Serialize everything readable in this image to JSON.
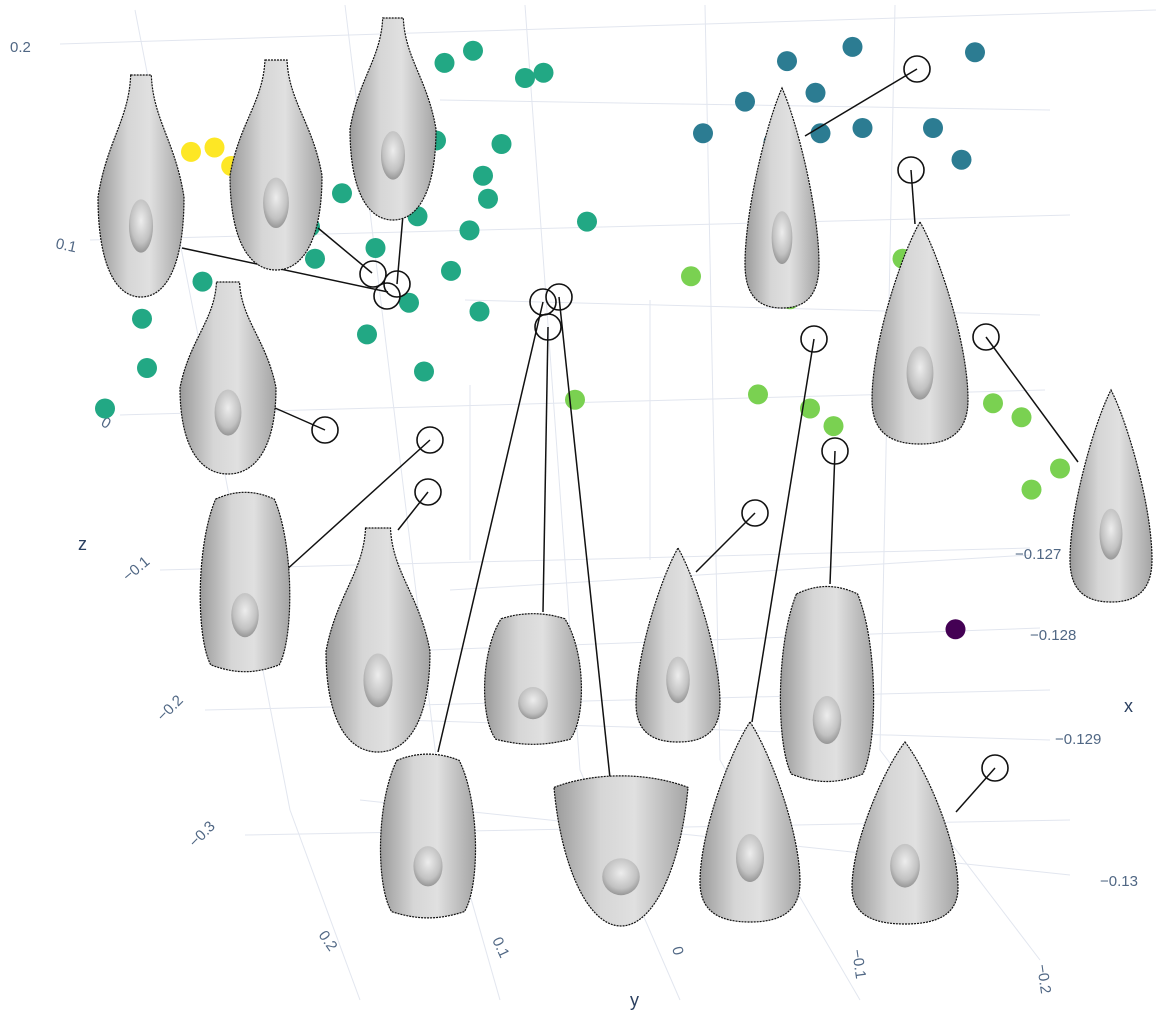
{
  "chart_data": {
    "type": "scatter3d",
    "axis_titles": {
      "x": "x",
      "y": "y",
      "z": "z"
    },
    "z_ticks": [
      "0.2",
      "0.1",
      "0",
      "−0.1",
      "−0.2",
      "−0.3"
    ],
    "y_ticks": [
      "0.2",
      "0.1",
      "0",
      "−0.1",
      "−0.2"
    ],
    "x_ticks": [
      "−0.127",
      "−0.128",
      "−0.129",
      "−0.13"
    ],
    "colorscale": "viridis",
    "colors": {
      "yellow": "#fde725",
      "teal": "#22a884",
      "blue": "#2c7c92",
      "lime": "#7ad151",
      "purple": "#440154"
    },
    "grid": true,
    "points": {
      "yellow": [
        {
          "x": -0.1272,
          "y": 0.13,
          "z": 0.09
        },
        {
          "x": -0.1272,
          "y": 0.14,
          "z": 0.085
        },
        {
          "x": -0.1273,
          "y": 0.125,
          "z": 0.075
        }
      ],
      "teal": [
        {
          "x": -0.1272,
          "y": 0.02,
          "z": 0.2
        },
        {
          "x": -0.1271,
          "y": 0.03,
          "z": 0.18
        },
        {
          "x": -0.1273,
          "y": 0.0,
          "z": 0.175
        },
        {
          "x": -0.1272,
          "y": -0.01,
          "z": 0.175
        },
        {
          "x": -0.1272,
          "y": 0.06,
          "z": 0.16
        },
        {
          "x": -0.1274,
          "y": 0.04,
          "z": 0.11
        },
        {
          "x": -0.1274,
          "y": 0.05,
          "z": 0.08
        },
        {
          "x": -0.1275,
          "y": 0.06,
          "z": 0.06
        },
        {
          "x": -0.1276,
          "y": 0.07,
          "z": 0.0
        },
        {
          "x": -0.1273,
          "y": 0.01,
          "z": 0.1
        },
        {
          "x": -0.1274,
          "y": 0.02,
          "z": 0.07
        },
        {
          "x": -0.1273,
          "y": 0.05,
          "z": 0.1
        },
        {
          "x": -0.1275,
          "y": 0.05,
          "z": 0.03
        },
        {
          "x": -0.1274,
          "y": 0.08,
          "z": 0.05
        },
        {
          "x": -0.1276,
          "y": -0.02,
          "z": 0.03
        },
        {
          "x": -0.1275,
          "y": 0.02,
          "z": 0.05
        },
        {
          "x": -0.1276,
          "y": 0.03,
          "z": 0.02
        },
        {
          "x": -0.1277,
          "y": 0.04,
          "z": -0.02
        },
        {
          "x": -0.1278,
          "y": 0.06,
          "z": -0.05
        },
        {
          "x": -0.1278,
          "y": 0.03,
          "z": -0.06
        },
        {
          "x": -0.1279,
          "y": 0.08,
          "z": -0.08
        },
        {
          "x": -0.1281,
          "y": 0.06,
          "z": -0.11
        },
        {
          "x": -0.1276,
          "y": 0.16,
          "z": 0.05
        },
        {
          "x": -0.1279,
          "y": 0.15,
          "z": -0.02
        },
        {
          "x": -0.1281,
          "y": 0.18,
          "z": -0.05
        },
        {
          "x": -0.1282,
          "y": 0.18,
          "z": -0.1
        },
        {
          "x": -0.1283,
          "y": 0.2,
          "z": -0.14
        },
        {
          "x": -0.1277,
          "y": 0.11,
          "z": 0.03
        },
        {
          "x": -0.1277,
          "y": 0.1,
          "z": 0.03
        },
        {
          "x": -0.1278,
          "y": 0.1,
          "z": 0.0
        },
        {
          "x": -0.1275,
          "y": 0.12,
          "z": 0.08
        }
      ],
      "blue": [
        {
          "x": -0.1268,
          "y": -0.15,
          "z": 0.18
        },
        {
          "x": -0.1269,
          "y": -0.12,
          "z": 0.17
        },
        {
          "x": -0.1269,
          "y": -0.2,
          "z": 0.18
        },
        {
          "x": -0.127,
          "y": -0.13,
          "z": 0.14
        },
        {
          "x": -0.127,
          "y": -0.15,
          "z": 0.1
        },
        {
          "x": -0.1271,
          "y": -0.11,
          "z": 0.09
        },
        {
          "x": -0.127,
          "y": -0.18,
          "z": 0.1
        },
        {
          "x": -0.1271,
          "y": -0.08,
          "z": 0.1
        },
        {
          "x": -0.1271,
          "y": -0.13,
          "z": 0.1
        },
        {
          "x": -0.1271,
          "y": -0.19,
          "z": 0.07
        },
        {
          "x": -0.127,
          "y": -0.1,
          "z": 0.13
        }
      ],
      "lime": [
        {
          "x": -0.1277,
          "y": -0.1,
          "z": 0.0
        },
        {
          "x": -0.1278,
          "y": -0.06,
          "z": -0.02
        },
        {
          "x": -0.1279,
          "y": -0.1,
          "z": -0.04
        },
        {
          "x": -0.1281,
          "y": -0.14,
          "z": -0.07
        },
        {
          "x": -0.1282,
          "y": -0.08,
          "z": -0.13
        },
        {
          "x": -0.1283,
          "y": -0.1,
          "z": -0.14
        },
        {
          "x": -0.1283,
          "y": -0.11,
          "z": -0.16
        },
        {
          "x": -0.1282,
          "y": -0.18,
          "z": -0.14
        },
        {
          "x": -0.1283,
          "y": -0.19,
          "z": -0.15
        },
        {
          "x": -0.1285,
          "y": -0.19,
          "z": -0.22
        },
        {
          "x": -0.1286,
          "y": -0.2,
          "z": -0.19
        },
        {
          "x": -0.1278,
          "y": -0.15,
          "z": 0.0
        },
        {
          "x": -0.1283,
          "y": 0.0,
          "z": -0.13
        }
      ],
      "purple": [
        {
          "x": -0.1298,
          "y": -0.13,
          "z": -0.3
        }
      ]
    }
  }
}
